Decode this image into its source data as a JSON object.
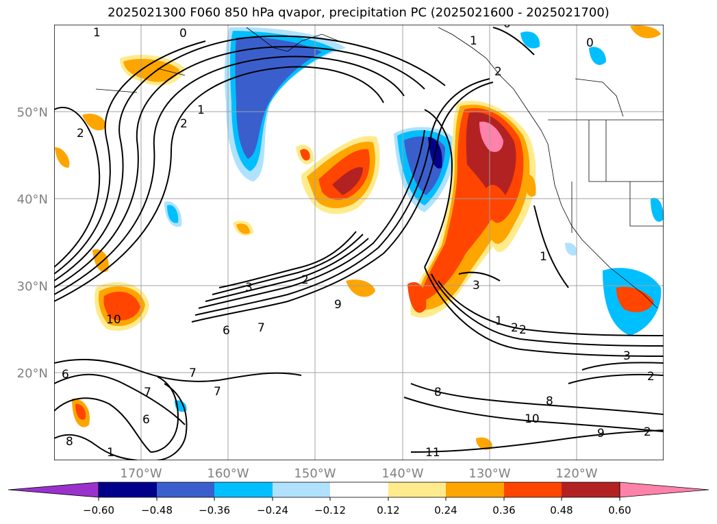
{
  "title": "2025021300 F060 850 hPa qvapor, precipitation PC (2025021600 - 2025021700)",
  "map": {
    "lat_labels": [
      "50°N",
      "40°N",
      "30°N",
      "20°N"
    ],
    "lon_labels": [
      "170°W",
      "160°W",
      "150°W",
      "140°W",
      "130°W",
      "120°W"
    ],
    "contour_labels": [
      "1",
      "0",
      "1",
      "1",
      "2",
      "2",
      "2",
      "0",
      "0",
      "1",
      "2",
      "2",
      "3",
      "2",
      "9",
      "10",
      "6",
      "7",
      "1",
      "2",
      "3",
      "3",
      "2",
      "6",
      "7",
      "7",
      "7",
      "6",
      "8",
      "8",
      "8",
      "10",
      "9",
      "11",
      "1"
    ]
  },
  "colorbar": {
    "tick_labels": [
      "−0.60",
      "−0.48",
      "−0.36",
      "−0.24",
      "−0.12",
      "0.12",
      "0.24",
      "0.36",
      "0.48",
      "0.60"
    ],
    "colors": [
      "#9932cc",
      "#00008b",
      "#3a5fcd",
      "#00bfff",
      "#b0e2ff",
      "#ffffff",
      "#ffeb8c",
      "#ffa500",
      "#ff4500",
      "#b22222",
      "#ff82ab"
    ]
  },
  "colors": {
    "grid": "#a0a0a0",
    "axis_label": "#808080",
    "contour": "#000000"
  }
}
